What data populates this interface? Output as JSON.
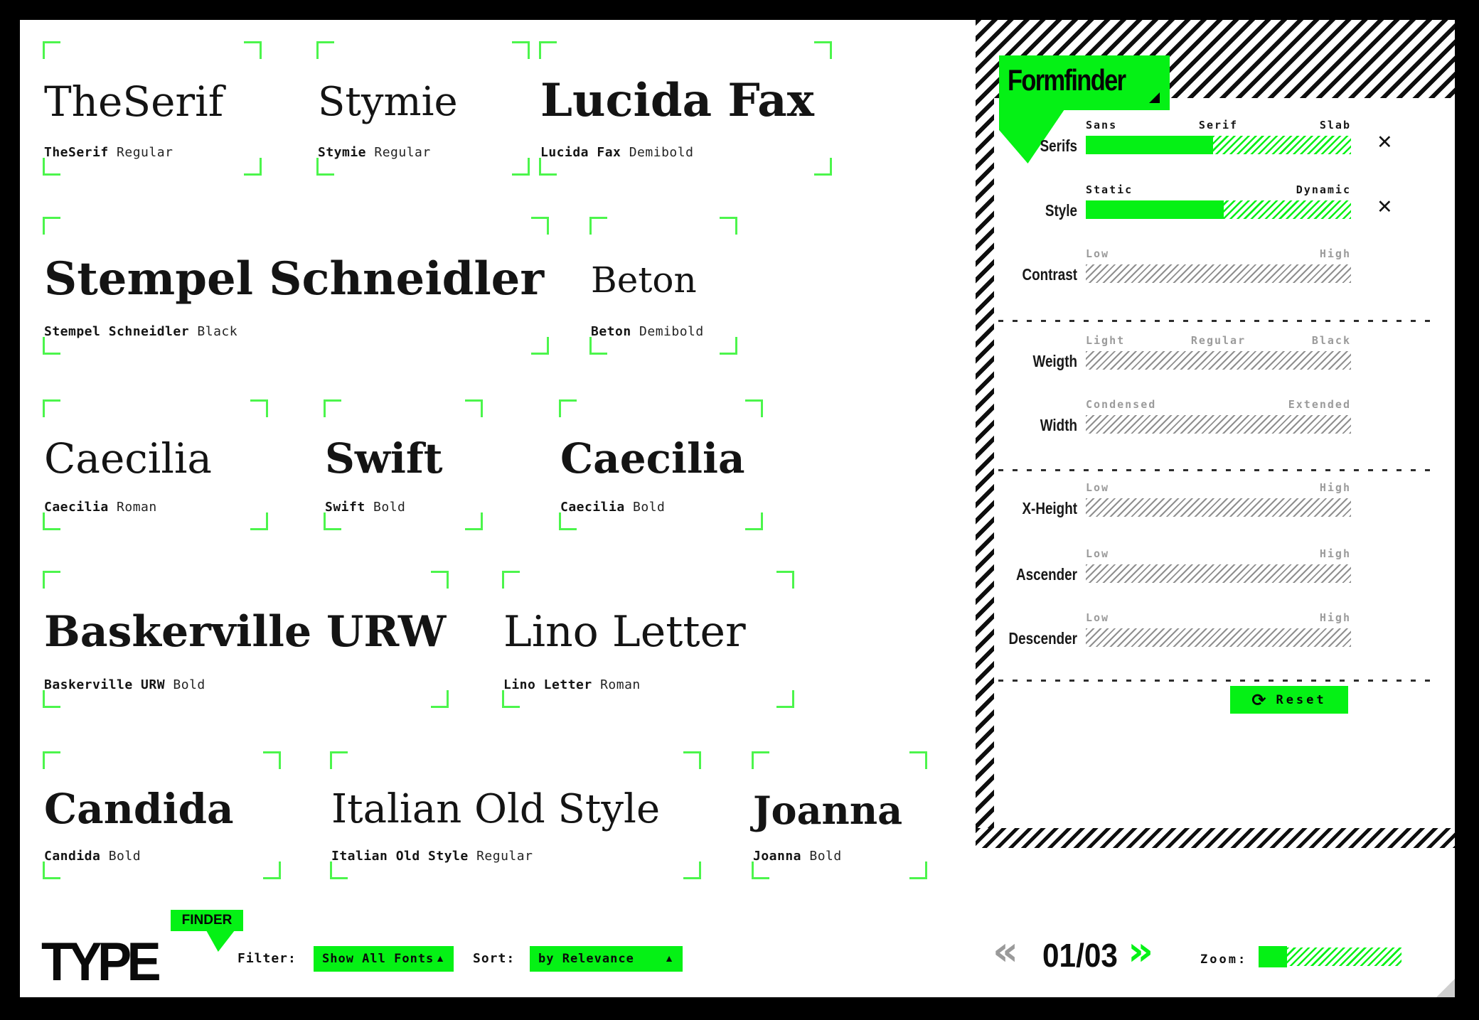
{
  "brand": {
    "logo": "TYPE",
    "tag": "FINDER"
  },
  "toolbar": {
    "filter_label": "Filter:",
    "filter_value": "Show All Fonts",
    "sort_label": "Sort:",
    "sort_value": "by Relevance",
    "dropdown_arrow": "▲"
  },
  "pagination": {
    "prev": "«",
    "page": "01/03",
    "next": "»"
  },
  "zoom_control": {
    "label": "Zoom:",
    "fill_percent": 20
  },
  "panel": {
    "title": "Formfinder",
    "close": "✕",
    "reset": {
      "icon": "⟳",
      "label": "Reset"
    },
    "sliders": [
      {
        "name": "Serifs",
        "t0": "Sans",
        "t1": "Serif",
        "t2": "Slab",
        "state": "active",
        "fill": 48
      },
      {
        "name": "Style",
        "t0": "Static",
        "t2": "Dynamic",
        "state": "active",
        "fill": 52
      },
      {
        "name": "Contrast",
        "t0": "Low",
        "t2": "High",
        "state": "inactive",
        "fill": 0
      },
      {
        "name": "Weigth",
        "t0": "Light",
        "t1": "Regular",
        "t2": "Black",
        "state": "inactive",
        "fill": 0
      },
      {
        "name": "Width",
        "t0": "Condensed",
        "t2": "Extended",
        "state": "inactive",
        "fill": 0
      },
      {
        "name": "X-Height",
        "t0": "Low",
        "t2": "High",
        "state": "inactive",
        "fill": 0
      },
      {
        "name": "Ascender",
        "t0": "Low",
        "t2": "High",
        "state": "inactive",
        "fill": 0
      },
      {
        "name": "Descender",
        "t0": "Low",
        "t2": "High",
        "state": "inactive",
        "fill": 0
      }
    ]
  },
  "specimens": [
    {
      "name": "TheSerif",
      "style": "Regular"
    },
    {
      "name": "Stymie",
      "style": "Regular"
    },
    {
      "name": "Lucida Fax",
      "style": "Demibold"
    },
    {
      "name": "Stempel Schneidler",
      "style": "Black"
    },
    {
      "name": "Beton",
      "style": "Demibold"
    },
    {
      "name": "Caecilia",
      "style": "Roman"
    },
    {
      "name": "Swift",
      "style": "Bold"
    },
    {
      "name": "Caecilia",
      "style": "Bold"
    },
    {
      "name": "Baskerville URW",
      "style": "Bold"
    },
    {
      "name": "Lino Letter",
      "style": "Roman"
    },
    {
      "name": "Candida",
      "style": "Bold"
    },
    {
      "name": "Italian Old Style",
      "style": "Regular"
    },
    {
      "name": "Joanna",
      "style": "Bold"
    }
  ],
  "colors": {
    "accent_green": "#05F115",
    "bracket_green": "#4CF54C",
    "inactive_gray": "#9b9b9b"
  }
}
